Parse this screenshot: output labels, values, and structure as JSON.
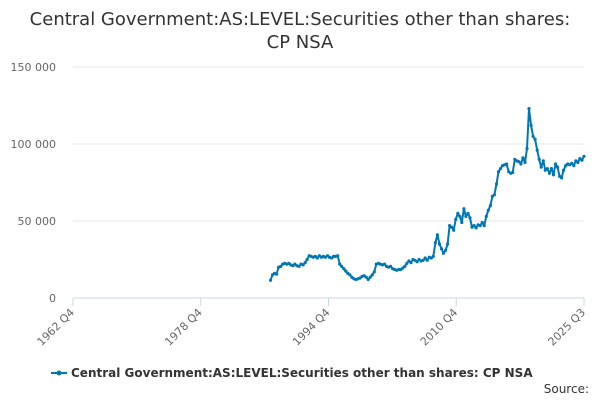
{
  "chart_data": {
    "type": "line",
    "title_lines": [
      "Central Government:AS:LEVEL:Securities other than shares:",
      "CP NSA"
    ],
    "x_ticks": [
      "1962 Q4",
      "1978 Q4",
      "1994 Q4",
      "2010 Q4",
      "2025 Q3"
    ],
    "xlim": [
      1962.75,
      2025.5
    ],
    "y_ticks": [
      {
        "value": 0,
        "label": "0"
      },
      {
        "value": 50000,
        "label": "50 000"
      },
      {
        "value": 100000,
        "label": "100 000"
      },
      {
        "value": 150000,
        "label": "150 000"
      }
    ],
    "ylim": [
      0,
      150000
    ],
    "series": [
      {
        "name": "Central Government:AS:LEVEL:Securities other than shares: CP NSA",
        "color": "#0077b3",
        "points": [
          [
            1987.0,
            11500
          ],
          [
            1987.25,
            15000
          ],
          [
            1987.5,
            16000
          ],
          [
            1987.75,
            15500
          ],
          [
            1988.0,
            20000
          ],
          [
            1988.25,
            20500
          ],
          [
            1988.5,
            22000
          ],
          [
            1988.75,
            22500
          ],
          [
            1989.0,
            22000
          ],
          [
            1989.25,
            22500
          ],
          [
            1989.5,
            21500
          ],
          [
            1989.75,
            21000
          ],
          [
            1990.0,
            22000
          ],
          [
            1990.25,
            21000
          ],
          [
            1990.5,
            20500
          ],
          [
            1990.75,
            22000
          ],
          [
            1991.0,
            21500
          ],
          [
            1991.25,
            23000
          ],
          [
            1991.5,
            25000
          ],
          [
            1991.75,
            27500
          ],
          [
            1992.0,
            27000
          ],
          [
            1992.25,
            26500
          ],
          [
            1992.5,
            27000
          ],
          [
            1992.75,
            26000
          ],
          [
            1993.0,
            27500
          ],
          [
            1993.25,
            26500
          ],
          [
            1993.5,
            27000
          ],
          [
            1993.75,
            26500
          ],
          [
            1994.0,
            27500
          ],
          [
            1994.25,
            26500
          ],
          [
            1994.5,
            26000
          ],
          [
            1994.75,
            27000
          ],
          [
            1995.0,
            27000
          ],
          [
            1995.25,
            27500
          ],
          [
            1995.5,
            22000
          ],
          [
            1995.75,
            20500
          ],
          [
            1996.0,
            19000
          ],
          [
            1996.25,
            17500
          ],
          [
            1996.5,
            16000
          ],
          [
            1996.75,
            15000
          ],
          [
            1997.0,
            13500
          ],
          [
            1997.25,
            12500
          ],
          [
            1997.5,
            12000
          ],
          [
            1997.75,
            12500
          ],
          [
            1998.0,
            13000
          ],
          [
            1998.25,
            14000
          ],
          [
            1998.5,
            14500
          ],
          [
            1998.75,
            13500
          ],
          [
            1999.0,
            12000
          ],
          [
            1999.25,
            13500
          ],
          [
            1999.5,
            15000
          ],
          [
            1999.75,
            17000
          ],
          [
            2000.0,
            22000
          ],
          [
            2000.25,
            22500
          ],
          [
            2000.5,
            22000
          ],
          [
            2000.75,
            21500
          ],
          [
            2001.0,
            22000
          ],
          [
            2001.25,
            20500
          ],
          [
            2001.5,
            20000
          ],
          [
            2001.75,
            20500
          ],
          [
            2002.0,
            19000
          ],
          [
            2002.25,
            18500
          ],
          [
            2002.5,
            18000
          ],
          [
            2002.75,
            18500
          ],
          [
            2003.0,
            18500
          ],
          [
            2003.25,
            19500
          ],
          [
            2003.5,
            20500
          ],
          [
            2003.75,
            22500
          ],
          [
            2004.0,
            24000
          ],
          [
            2004.25,
            23000
          ],
          [
            2004.5,
            25000
          ],
          [
            2004.75,
            24500
          ],
          [
            2005.0,
            23500
          ],
          [
            2005.25,
            25000
          ],
          [
            2005.5,
            24000
          ],
          [
            2005.75,
            24500
          ],
          [
            2006.0,
            26000
          ],
          [
            2006.25,
            24500
          ],
          [
            2006.5,
            26500
          ],
          [
            2006.75,
            26000
          ],
          [
            2007.0,
            27000
          ],
          [
            2007.25,
            36000
          ],
          [
            2007.5,
            41000
          ],
          [
            2007.75,
            35000
          ],
          [
            2008.0,
            32000
          ],
          [
            2008.25,
            29000
          ],
          [
            2008.5,
            31000
          ],
          [
            2008.75,
            35000
          ],
          [
            2009.0,
            47000
          ],
          [
            2009.25,
            46000
          ],
          [
            2009.5,
            44000
          ],
          [
            2009.75,
            51000
          ],
          [
            2010.0,
            55000
          ],
          [
            2010.25,
            53000
          ],
          [
            2010.5,
            49000
          ],
          [
            2010.75,
            58000
          ],
          [
            2011.0,
            53000
          ],
          [
            2011.25,
            55000
          ],
          [
            2011.5,
            52000
          ],
          [
            2011.75,
            46000
          ],
          [
            2012.0,
            47000
          ],
          [
            2012.25,
            45500
          ],
          [
            2012.5,
            47500
          ],
          [
            2012.75,
            47000
          ],
          [
            2013.0,
            49000
          ],
          [
            2013.25,
            47000
          ],
          [
            2013.5,
            53000
          ],
          [
            2013.75,
            57000
          ],
          [
            2014.0,
            60000
          ],
          [
            2014.25,
            66000
          ],
          [
            2014.5,
            67000
          ],
          [
            2014.75,
            74000
          ],
          [
            2015.0,
            82000
          ],
          [
            2015.25,
            84000
          ],
          [
            2015.5,
            86000
          ],
          [
            2015.75,
            86500
          ],
          [
            2016.0,
            87000
          ],
          [
            2016.25,
            82000
          ],
          [
            2016.5,
            81000
          ],
          [
            2016.75,
            81500
          ],
          [
            2017.0,
            90000
          ],
          [
            2017.25,
            89000
          ],
          [
            2017.5,
            88500
          ],
          [
            2017.75,
            87000
          ],
          [
            2018.0,
            91000
          ],
          [
            2018.25,
            88000
          ],
          [
            2018.5,
            97000
          ],
          [
            2018.75,
            123000
          ],
          [
            2019.0,
            112000
          ],
          [
            2019.25,
            105000
          ],
          [
            2019.5,
            103000
          ],
          [
            2019.75,
            96000
          ],
          [
            2020.0,
            90000
          ],
          [
            2020.25,
            85000
          ],
          [
            2020.5,
            89000
          ],
          [
            2020.75,
            83000
          ],
          [
            2021.0,
            84000
          ],
          [
            2021.25,
            81000
          ],
          [
            2021.5,
            84000
          ],
          [
            2021.75,
            80000
          ],
          [
            2022.0,
            87000
          ],
          [
            2022.25,
            85000
          ],
          [
            2022.5,
            79000
          ],
          [
            2022.75,
            78000
          ],
          [
            2023.0,
            83000
          ],
          [
            2023.25,
            86000
          ],
          [
            2023.5,
            87000
          ],
          [
            2023.75,
            86500
          ],
          [
            2024.0,
            87500
          ],
          [
            2024.25,
            86000
          ],
          [
            2024.5,
            89000
          ],
          [
            2024.75,
            88000
          ],
          [
            2025.0,
            90500
          ],
          [
            2025.25,
            89500
          ],
          [
            2025.5,
            92000
          ]
        ]
      }
    ],
    "legend_position": "bottom",
    "source_label": "Source:"
  }
}
